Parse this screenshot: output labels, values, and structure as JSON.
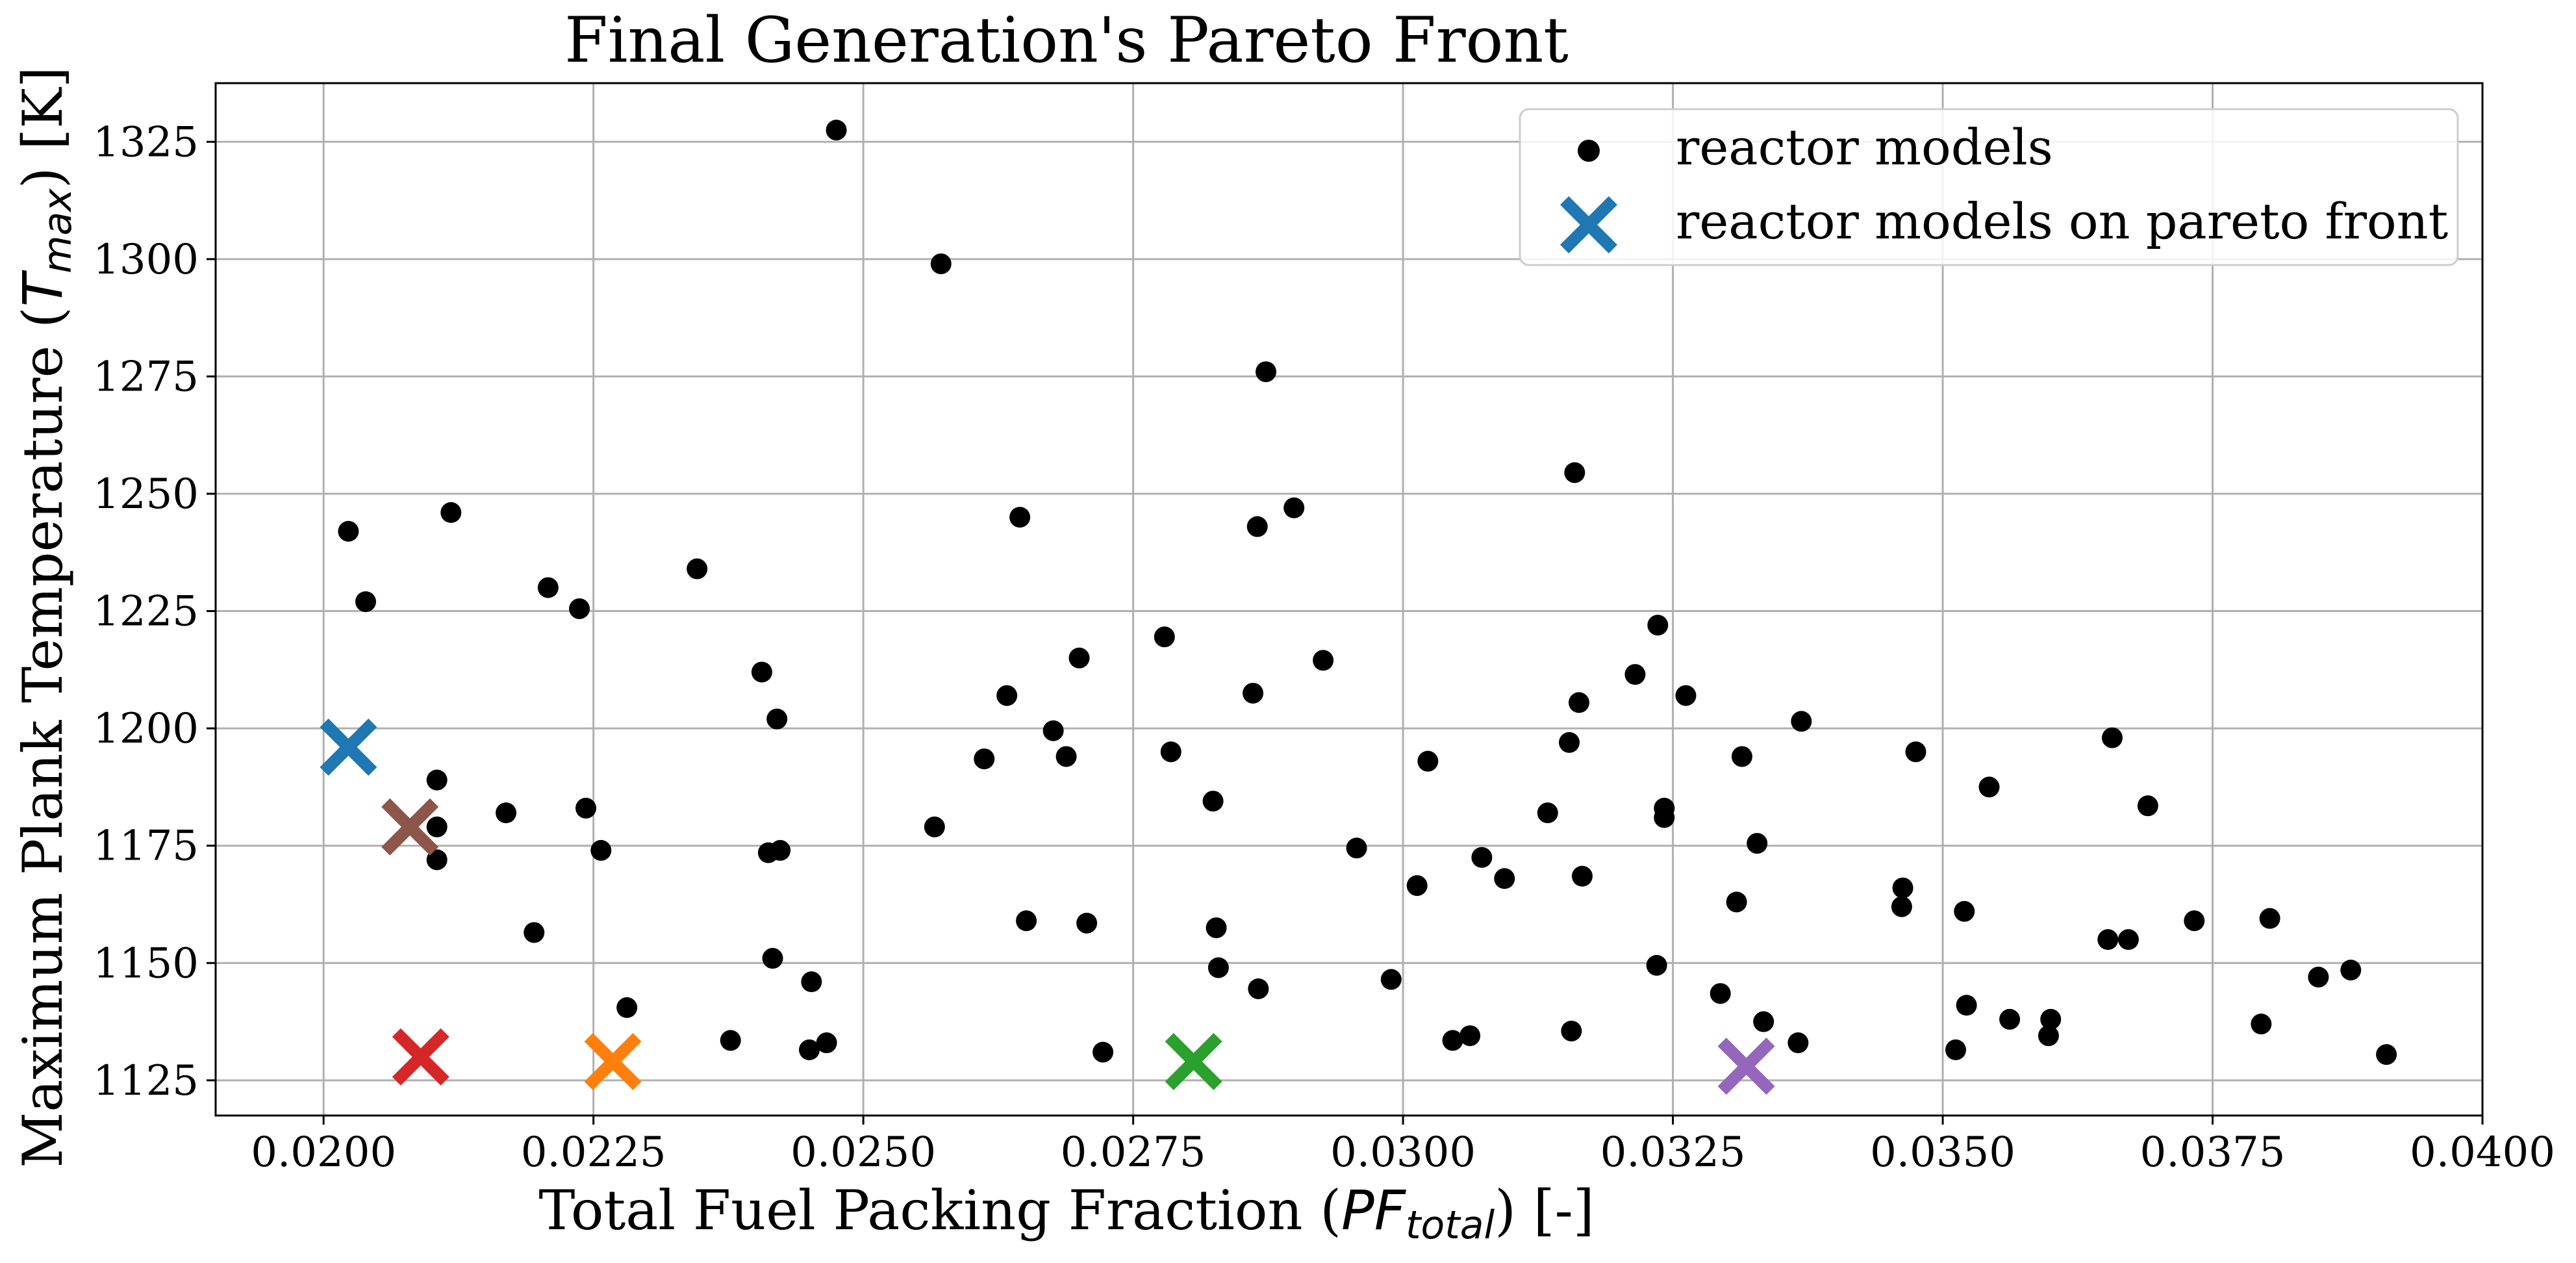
{
  "chart_data": {
    "type": "scatter",
    "title": "Final Generation's Pareto Front",
    "xlabel": {
      "pre": "Total Fuel Packing Fraction (",
      "math": "PF",
      "sub": "total",
      "post": ") [-]"
    },
    "ylabel": {
      "pre": "Maximum Plank Temperature (",
      "math": "T",
      "sub": "max",
      "post": ") [K]"
    },
    "xlim": [
      0.019,
      0.04
    ],
    "ylim": [
      1117.5,
      1337.5
    ],
    "xticks": [
      "0.0200",
      "0.0225",
      "0.0250",
      "0.0275",
      "0.0300",
      "0.0325",
      "0.0350",
      "0.0375",
      "0.0400"
    ],
    "xtick_values": [
      0.02,
      0.0225,
      0.025,
      0.0275,
      0.03,
      0.0325,
      0.035,
      0.0375,
      0.04
    ],
    "yticks": [
      "1125",
      "1150",
      "1175",
      "1200",
      "1225",
      "1250",
      "1275",
      "1300",
      "1325"
    ],
    "ytick_values": [
      1125,
      1150,
      1175,
      1200,
      1225,
      1250,
      1275,
      1300,
      1325
    ],
    "grid": true,
    "legend": {
      "position": "top-right",
      "entries": [
        "reactor models",
        "reactor models on pareto front"
      ]
    },
    "series": [
      {
        "name": "reactor models",
        "color": "#000000",
        "marker": "circle",
        "points": [
          [
            0.02475,
            1327.5
          ],
          [
            0.02572,
            1299
          ],
          [
            0.02873,
            1276
          ],
          [
            0.03159,
            1254.5
          ],
          [
            0.02899,
            1247
          ],
          [
            0.02118,
            1246
          ],
          [
            0.02645,
            1245
          ],
          [
            0.02865,
            1243
          ],
          [
            0.02023,
            1242
          ],
          [
            0.02346,
            1234
          ],
          [
            0.02208,
            1230
          ],
          [
            0.02039,
            1227
          ],
          [
            0.02237,
            1225.5
          ],
          [
            0.03236,
            1222
          ],
          [
            0.02779,
            1219.5
          ],
          [
            0.027,
            1215
          ],
          [
            0.02926,
            1214.5
          ],
          [
            0.02406,
            1212
          ],
          [
            0.03215,
            1211.5
          ],
          [
            0.02861,
            1207.5
          ],
          [
            0.02633,
            1207
          ],
          [
            0.03262,
            1207
          ],
          [
            0.03163,
            1205.5
          ],
          [
            0.0242,
            1202
          ],
          [
            0.03369,
            1201.5
          ],
          [
            0.02676,
            1199.5
          ],
          [
            0.03657,
            1198
          ],
          [
            0.03154,
            1197
          ],
          [
            0.02785,
            1195
          ],
          [
            0.03475,
            1195
          ],
          [
            0.02688,
            1194
          ],
          [
            0.03314,
            1194
          ],
          [
            0.02612,
            1193.5
          ],
          [
            0.03023,
            1193
          ],
          [
            0.02105,
            1189
          ],
          [
            0.03543,
            1187.5
          ],
          [
            0.02824,
            1184.5
          ],
          [
            0.0369,
            1183.5
          ],
          [
            0.02243,
            1183
          ],
          [
            0.03242,
            1183
          ],
          [
            0.02169,
            1182
          ],
          [
            0.03134,
            1182
          ],
          [
            0.03242,
            1181
          ],
          [
            0.02105,
            1179
          ],
          [
            0.02566,
            1179
          ],
          [
            0.03166,
            1168.5
          ],
          [
            0.03328,
            1175.5
          ],
          [
            0.02957,
            1174.5
          ],
          [
            0.02412,
            1173.5
          ],
          [
            0.02423,
            1174
          ],
          [
            0.02257,
            1174
          ],
          [
            0.02105,
            1172
          ],
          [
            0.03073,
            1172.5
          ],
          [
            0.03094,
            1168
          ],
          [
            0.03013,
            1166.5
          ],
          [
            0.03463,
            1166
          ],
          [
            0.03309,
            1163
          ],
          [
            0.03462,
            1162
          ],
          [
            0.0352,
            1161
          ],
          [
            0.03733,
            1159
          ],
          [
            0.03803,
            1159.5
          ],
          [
            0.02651,
            1159
          ],
          [
            0.02707,
            1158.5
          ],
          [
            0.02827,
            1157.5
          ],
          [
            0.02195,
            1156.5
          ],
          [
            0.03653,
            1155
          ],
          [
            0.03672,
            1155
          ],
          [
            0.02416,
            1151
          ],
          [
            0.03235,
            1149.5
          ],
          [
            0.02829,
            1149
          ],
          [
            0.03878,
            1148.5
          ],
          [
            0.03848,
            1147
          ],
          [
            0.02452,
            1146
          ],
          [
            0.02989,
            1146.5
          ],
          [
            0.02866,
            1144.5
          ],
          [
            0.03294,
            1143.5
          ],
          [
            0.03522,
            1141
          ],
          [
            0.02281,
            1140.5
          ],
          [
            0.036,
            1138
          ],
          [
            0.03562,
            1138
          ],
          [
            0.03334,
            1137.5
          ],
          [
            0.03795,
            1137
          ],
          [
            0.03156,
            1135.5
          ],
          [
            0.03598,
            1134.5
          ],
          [
            0.03062,
            1134.5
          ],
          [
            0.03046,
            1133.5
          ],
          [
            0.02377,
            1133.5
          ],
          [
            0.03366,
            1133
          ],
          [
            0.02466,
            1133
          ],
          [
            0.0245,
            1131.5
          ],
          [
            0.02722,
            1131
          ],
          [
            0.03512,
            1131.5
          ],
          [
            0.03911,
            1130.5
          ]
        ]
      },
      {
        "name": "reactor models on pareto front",
        "marker": "x",
        "legend_color": "#1f77b4",
        "points": [
          {
            "x": 0.02023,
            "y": 1196,
            "color": "#1f77b4"
          },
          {
            "x": 0.0208,
            "y": 1179,
            "color": "#8c564b"
          },
          {
            "x": 0.0209,
            "y": 1130,
            "color": "#d62728"
          },
          {
            "x": 0.02268,
            "y": 1129,
            "color": "#ff7f0e"
          },
          {
            "x": 0.02806,
            "y": 1129,
            "color": "#2ca02c"
          },
          {
            "x": 0.03318,
            "y": 1128,
            "color": "#9467bd"
          }
        ]
      }
    ]
  }
}
